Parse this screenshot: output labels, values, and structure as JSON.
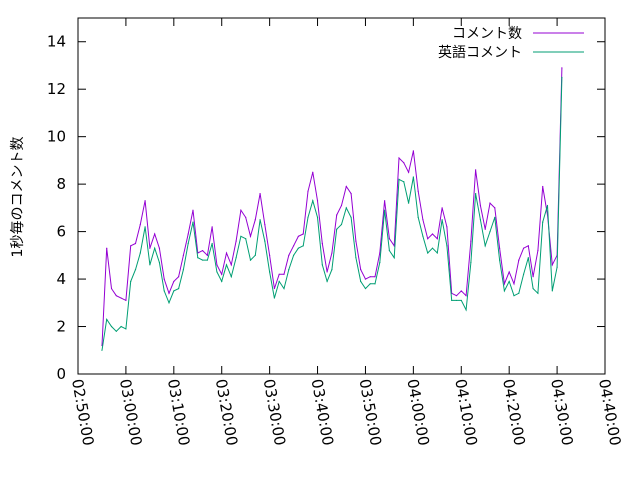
{
  "chart_data": {
    "type": "line",
    "title": "",
    "xlabel": "",
    "ylabel": "1秒毎のコメント数",
    "ylim": [
      0,
      15
    ],
    "yticks": [
      0,
      2,
      4,
      6,
      8,
      10,
      12,
      14
    ],
    "xlim": [
      "02:50:00",
      "04:40:00"
    ],
    "xtick_labels": [
      "02:50:00",
      "03:00:00",
      "03:10:00",
      "03:20:00",
      "03:30:00",
      "03:40:00",
      "03:50:00",
      "04:00:00",
      "04:10:00",
      "04:20:00",
      "04:30:00",
      "04:40:00"
    ],
    "grid": false,
    "legend_position": "top-right",
    "x": [
      "02:55:00",
      "02:56:00",
      "02:57:00",
      "02:58:00",
      "02:59:00",
      "03:00:00",
      "03:01:00",
      "03:02:00",
      "03:03:00",
      "03:04:00",
      "03:05:00",
      "03:06:00",
      "03:07:00",
      "03:08:00",
      "03:09:00",
      "03:10:00",
      "03:11:00",
      "03:12:00",
      "03:13:00",
      "03:14:00",
      "03:15:00",
      "03:16:00",
      "03:17:00",
      "03:18:00",
      "03:19:00",
      "03:20:00",
      "03:21:00",
      "03:22:00",
      "03:23:00",
      "03:24:00",
      "03:25:00",
      "03:26:00",
      "03:27:00",
      "03:28:00",
      "03:29:00",
      "03:30:00",
      "03:31:00",
      "03:32:00",
      "03:33:00",
      "03:34:00",
      "03:35:00",
      "03:36:00",
      "03:37:00",
      "03:38:00",
      "03:39:00",
      "03:40:00",
      "03:41:00",
      "03:42:00",
      "03:43:00",
      "03:44:00",
      "03:45:00",
      "03:46:00",
      "03:47:00",
      "03:48:00",
      "03:49:00",
      "03:50:00",
      "03:51:00",
      "03:52:00",
      "03:53:00",
      "03:54:00",
      "03:55:00",
      "03:56:00",
      "03:57:00",
      "03:58:00",
      "03:59:00",
      "04:00:00",
      "04:01:00",
      "04:02:00",
      "04:03:00",
      "04:04:00",
      "04:05:00",
      "04:06:00",
      "04:07:00",
      "04:08:00",
      "04:09:00",
      "04:10:00",
      "04:11:00",
      "04:12:00",
      "04:13:00",
      "04:14:00",
      "04:15:00",
      "04:16:00",
      "04:17:00",
      "04:18:00",
      "04:19:00",
      "04:20:00",
      "04:21:00",
      "04:22:00",
      "04:23:00",
      "04:24:00",
      "04:25:00",
      "04:26:00",
      "04:27:00",
      "04:28:00",
      "04:29:00",
      "04:30:00",
      "04:31:00"
    ],
    "series": [
      {
        "name": "コメント数",
        "color": "#9400d3",
        "values": [
          1.2,
          5.3,
          3.6,
          3.3,
          3.2,
          3.1,
          5.4,
          5.5,
          6.3,
          7.3,
          5.3,
          5.9,
          5.3,
          4.0,
          3.4,
          3.9,
          4.1,
          5.0,
          5.9,
          6.9,
          5.1,
          5.2,
          5.0,
          6.2,
          4.6,
          4.2,
          5.1,
          4.6,
          5.6,
          6.9,
          6.6,
          5.8,
          6.5,
          7.6,
          6.3,
          5.0,
          3.6,
          4.2,
          4.2,
          5.0,
          5.4,
          5.8,
          5.9,
          7.7,
          8.5,
          7.3,
          5.5,
          4.3,
          5.1,
          6.7,
          7.1,
          7.9,
          7.6,
          5.6,
          4.4,
          4.0,
          4.1,
          4.1,
          5.1,
          7.3,
          5.7,
          5.4,
          9.1,
          8.9,
          8.5,
          9.4,
          7.7,
          6.5,
          5.7,
          5.9,
          5.7,
          7.0,
          6.2,
          3.4,
          3.3,
          3.5,
          3.3,
          5.6,
          8.6,
          7.1,
          6.1,
          7.2,
          7.0,
          5.3,
          3.8,
          4.3,
          3.8,
          4.8,
          5.3,
          5.4,
          4.1,
          5.2,
          7.9,
          6.7,
          4.6,
          5.0,
          12.9
        ]
      },
      {
        "name": "英語コメント",
        "color": "#009e73",
        "values": [
          1.0,
          2.3,
          2.0,
          1.8,
          2.0,
          1.9,
          3.9,
          4.4,
          5.1,
          6.2,
          4.6,
          5.3,
          4.7,
          3.5,
          3.0,
          3.5,
          3.6,
          4.4,
          5.5,
          6.4,
          4.9,
          4.8,
          4.8,
          5.5,
          4.3,
          3.9,
          4.6,
          4.1,
          4.9,
          5.8,
          5.7,
          4.8,
          5.0,
          6.5,
          5.6,
          4.3,
          3.2,
          3.9,
          3.6,
          4.4,
          5.0,
          5.3,
          5.4,
          6.6,
          7.3,
          6.6,
          4.6,
          3.9,
          4.4,
          6.1,
          6.3,
          7.0,
          6.6,
          4.9,
          3.9,
          3.6,
          3.8,
          3.8,
          4.7,
          6.9,
          5.2,
          4.9,
          8.2,
          8.1,
          7.2,
          8.3,
          6.6,
          5.8,
          5.1,
          5.3,
          5.1,
          6.5,
          5.4,
          3.1,
          3.1,
          3.1,
          2.7,
          4.7,
          7.6,
          6.5,
          5.4,
          6.0,
          6.6,
          4.8,
          3.5,
          3.9,
          3.3,
          3.4,
          4.2,
          4.9,
          3.6,
          3.4,
          6.4,
          7.1,
          3.5,
          4.5,
          12.5
        ]
      }
    ]
  }
}
